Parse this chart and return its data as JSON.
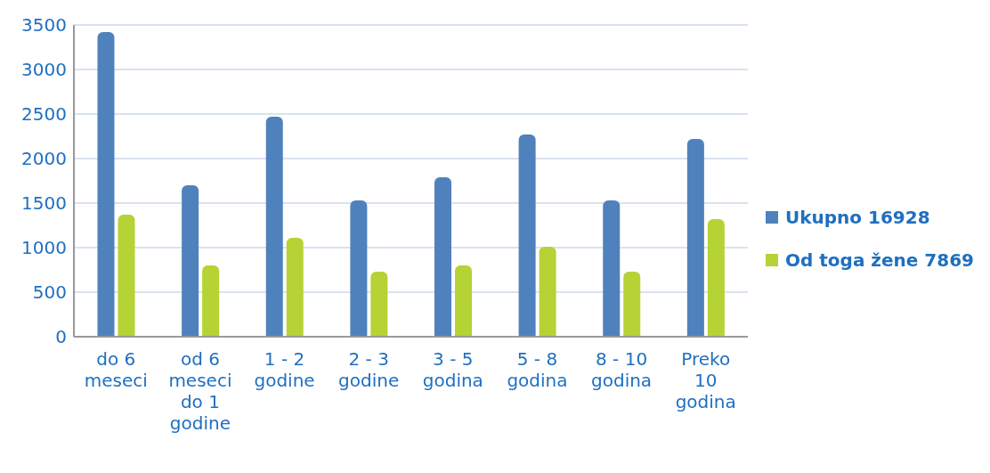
{
  "chart_data": {
    "type": "bar",
    "categories": [
      "do 6 meseci",
      "od 6 meseci do 1 godine",
      "1 - 2 godine",
      "2 - 3 godine",
      "3 - 5 godina",
      "5 - 8 godina",
      "8 - 10 godina",
      "Preko 10 godina"
    ],
    "series": [
      {
        "name": "Ukupno 16928",
        "color": "#4f81bd",
        "values": [
          3420,
          1700,
          2470,
          1530,
          1790,
          2270,
          1530,
          2220
        ]
      },
      {
        "name": "Od toga žene 7869",
        "color": "#b5d334",
        "values": [
          1370,
          800,
          1110,
          730,
          800,
          1010,
          730,
          1320
        ]
      }
    ],
    "ylim": [
      0,
      3500
    ],
    "yticks": [
      0,
      500,
      1000,
      1500,
      2000,
      2500,
      3000,
      3500
    ],
    "grid": "y",
    "legend": "right"
  }
}
